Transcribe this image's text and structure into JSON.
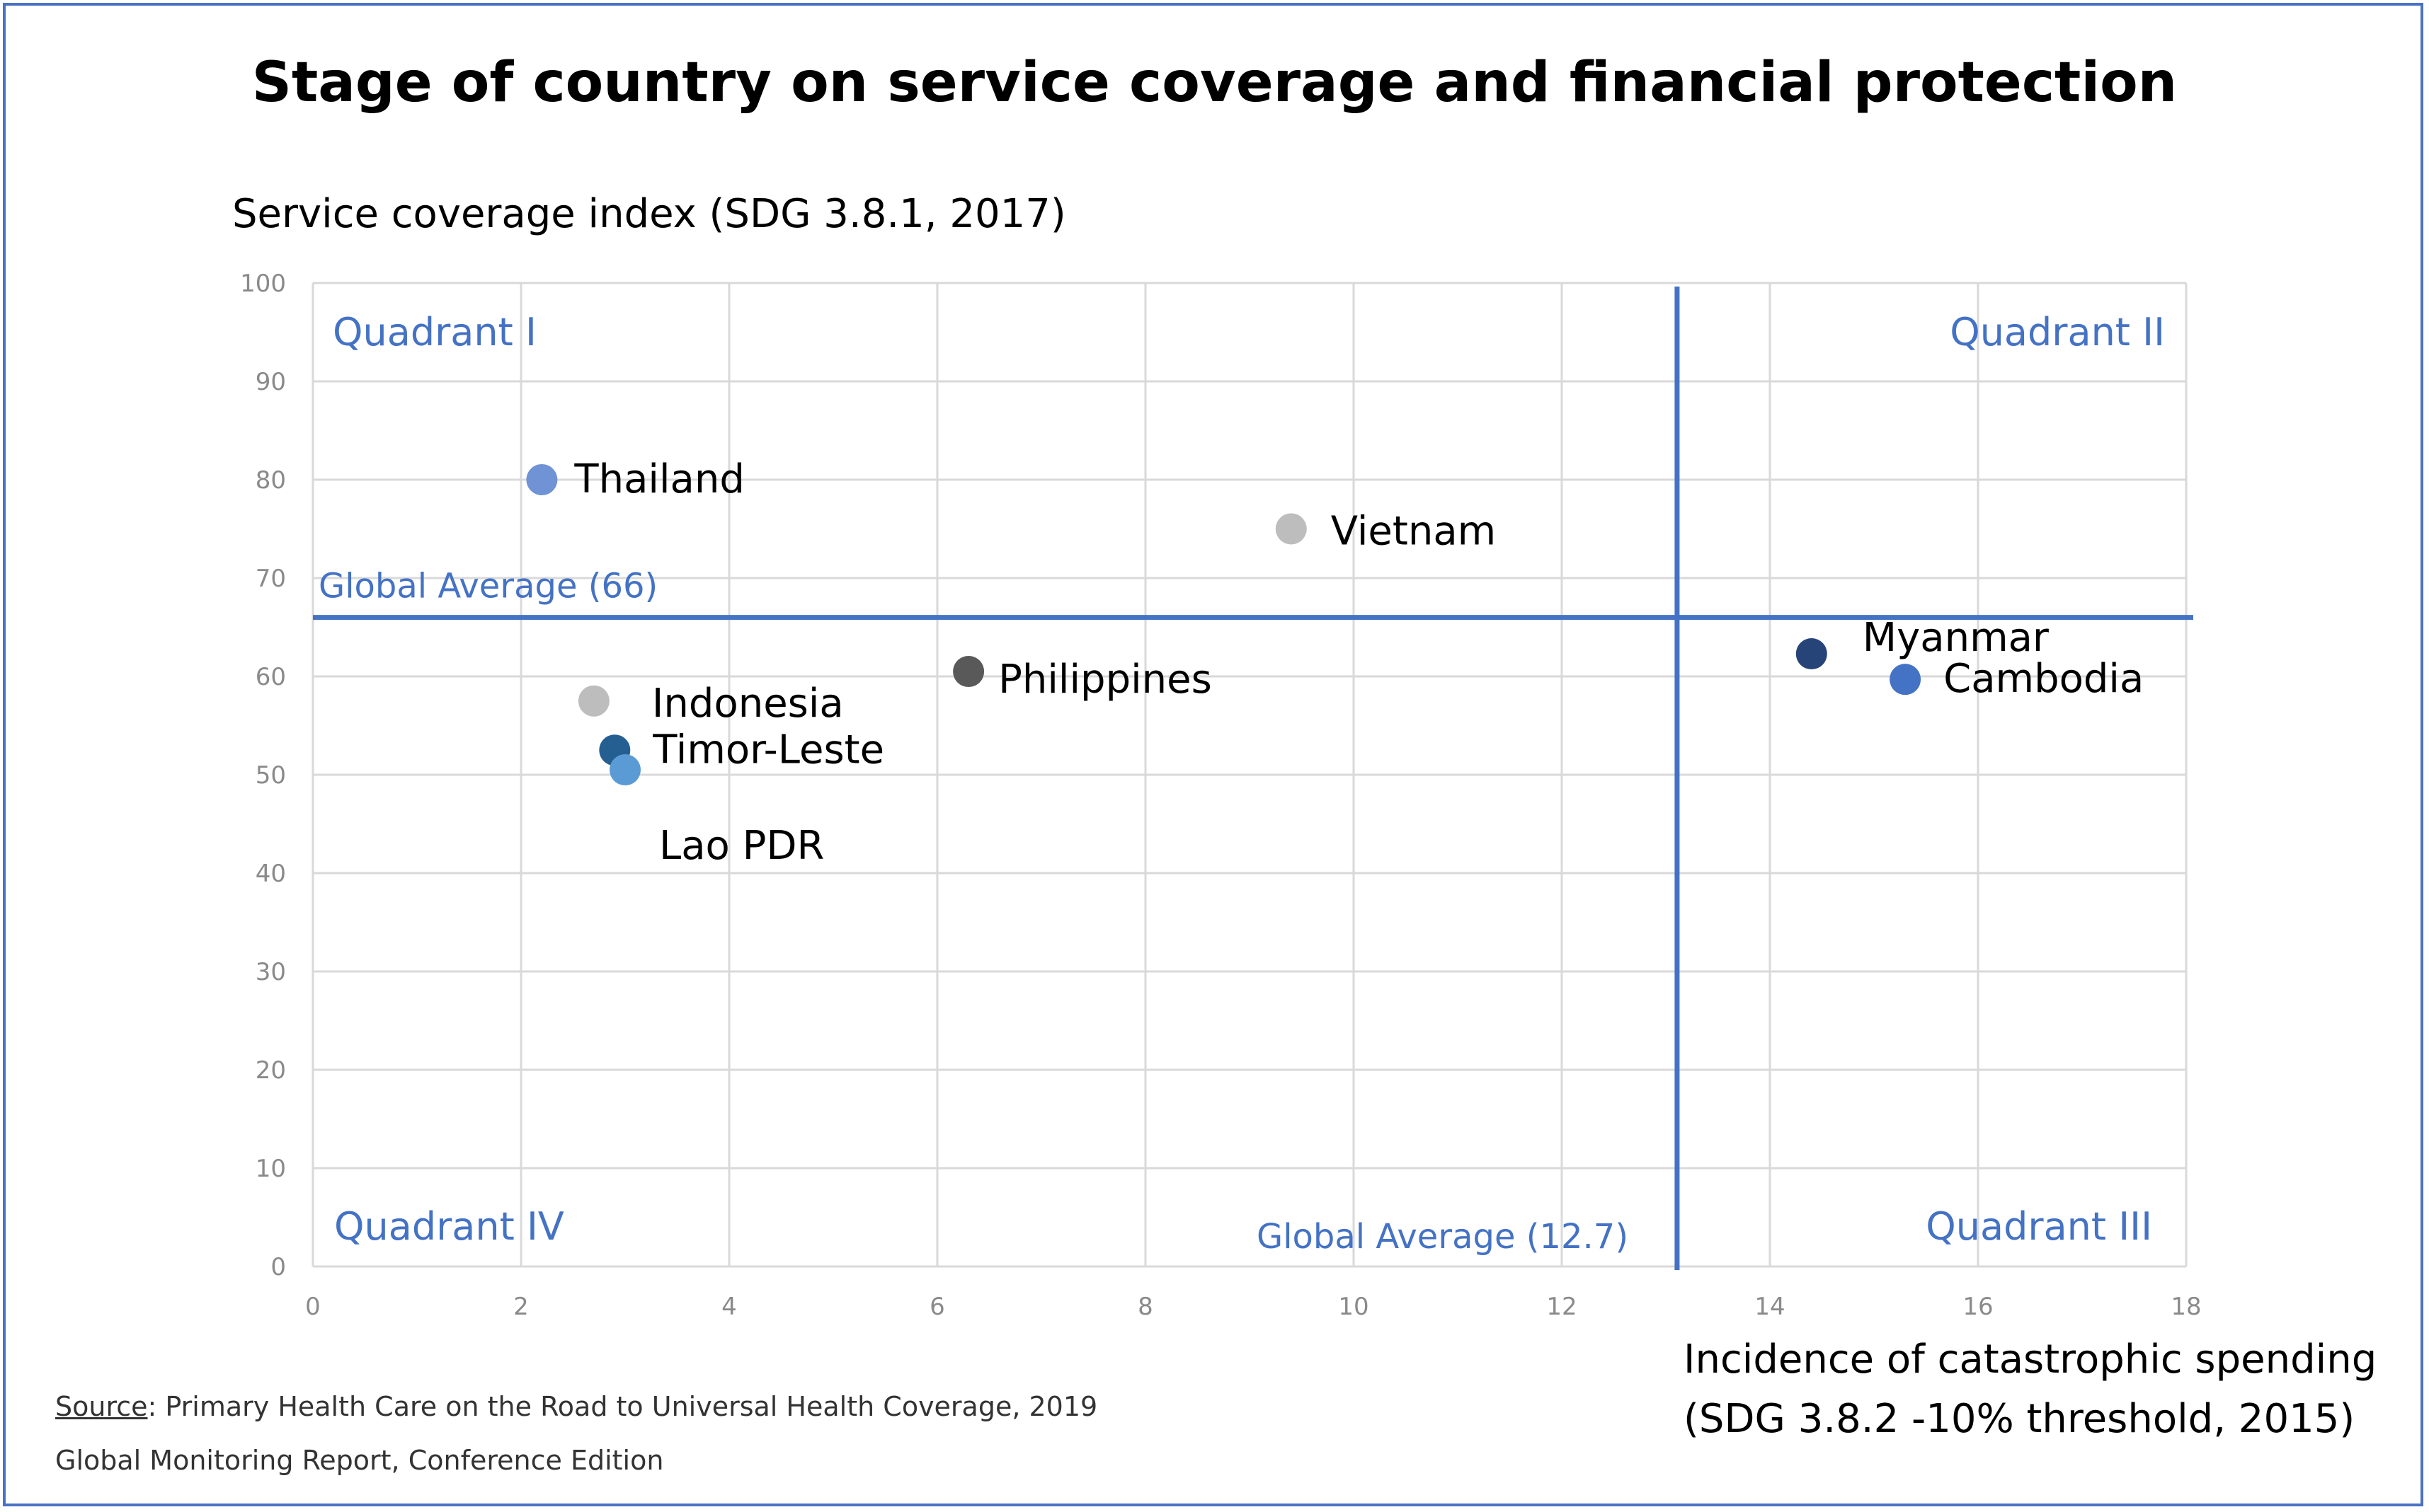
{
  "colors": {
    "accent": "#4472c4",
    "grid": "#d9d9d9",
    "frame": "#4a72c4"
  },
  "source": {
    "label": "Source",
    "line1": ": Primary Health Care on the Road to Universal Health Coverage, 2019",
    "line2": "Global Monitoring Report, Conference Edition"
  },
  "chart_data": {
    "type": "scatter",
    "title": "Stage of country on service coverage and financial protection",
    "ylabel": "Service coverage index (SDG 3.8.1, 2017)",
    "xlabel_lines": [
      "Incidence of catastrophic spending",
      "(SDG 3.8.2 -10% threshold, 2015)"
    ],
    "xlim": [
      0,
      18
    ],
    "ylim": [
      0,
      100
    ],
    "x_ticks": [
      0,
      2,
      4,
      6,
      8,
      10,
      12,
      14,
      16,
      18
    ],
    "y_ticks": [
      0,
      10,
      20,
      30,
      40,
      50,
      60,
      70,
      80,
      90,
      100
    ],
    "grid": true,
    "points": [
      {
        "label": "Thailand",
        "x": 2.2,
        "y": 80,
        "color": "#6f93d4"
      },
      {
        "label": "Vietnam",
        "x": 9.4,
        "y": 75,
        "color": "#bdbdbd"
      },
      {
        "label": "Philippines",
        "x": 6.3,
        "y": 60.5,
        "color": "#595959"
      },
      {
        "label": "Indonesia",
        "x": 2.7,
        "y": 57.5,
        "color": "#bdbdbd"
      },
      {
        "label": "Timor-Leste",
        "x": 2.9,
        "y": 52.5,
        "color": "#255e91"
      },
      {
        "label": "Lao PDR",
        "x": 3.0,
        "y": 50.5,
        "color": "#5b9bd5"
      },
      {
        "label": "Myanmar",
        "x": 14.4,
        "y": 62.3,
        "color": "#264478"
      },
      {
        "label": "Cambodia",
        "x": 15.3,
        "y": 59.7,
        "color": "#4472c4"
      }
    ],
    "reference_lines": [
      {
        "axis": "y",
        "value": 66,
        "label": "Global Average (66)"
      },
      {
        "axis": "x",
        "value": 12.7,
        "label": "Global Average (12.7)"
      }
    ],
    "quadrants": [
      {
        "label": "Quadrant I",
        "position": "top-left"
      },
      {
        "label": "Quadrant II",
        "position": "top-right"
      },
      {
        "label": "Quadrant III",
        "position": "bottom-right"
      },
      {
        "label": "Quadrant IV",
        "position": "bottom-left"
      }
    ]
  }
}
